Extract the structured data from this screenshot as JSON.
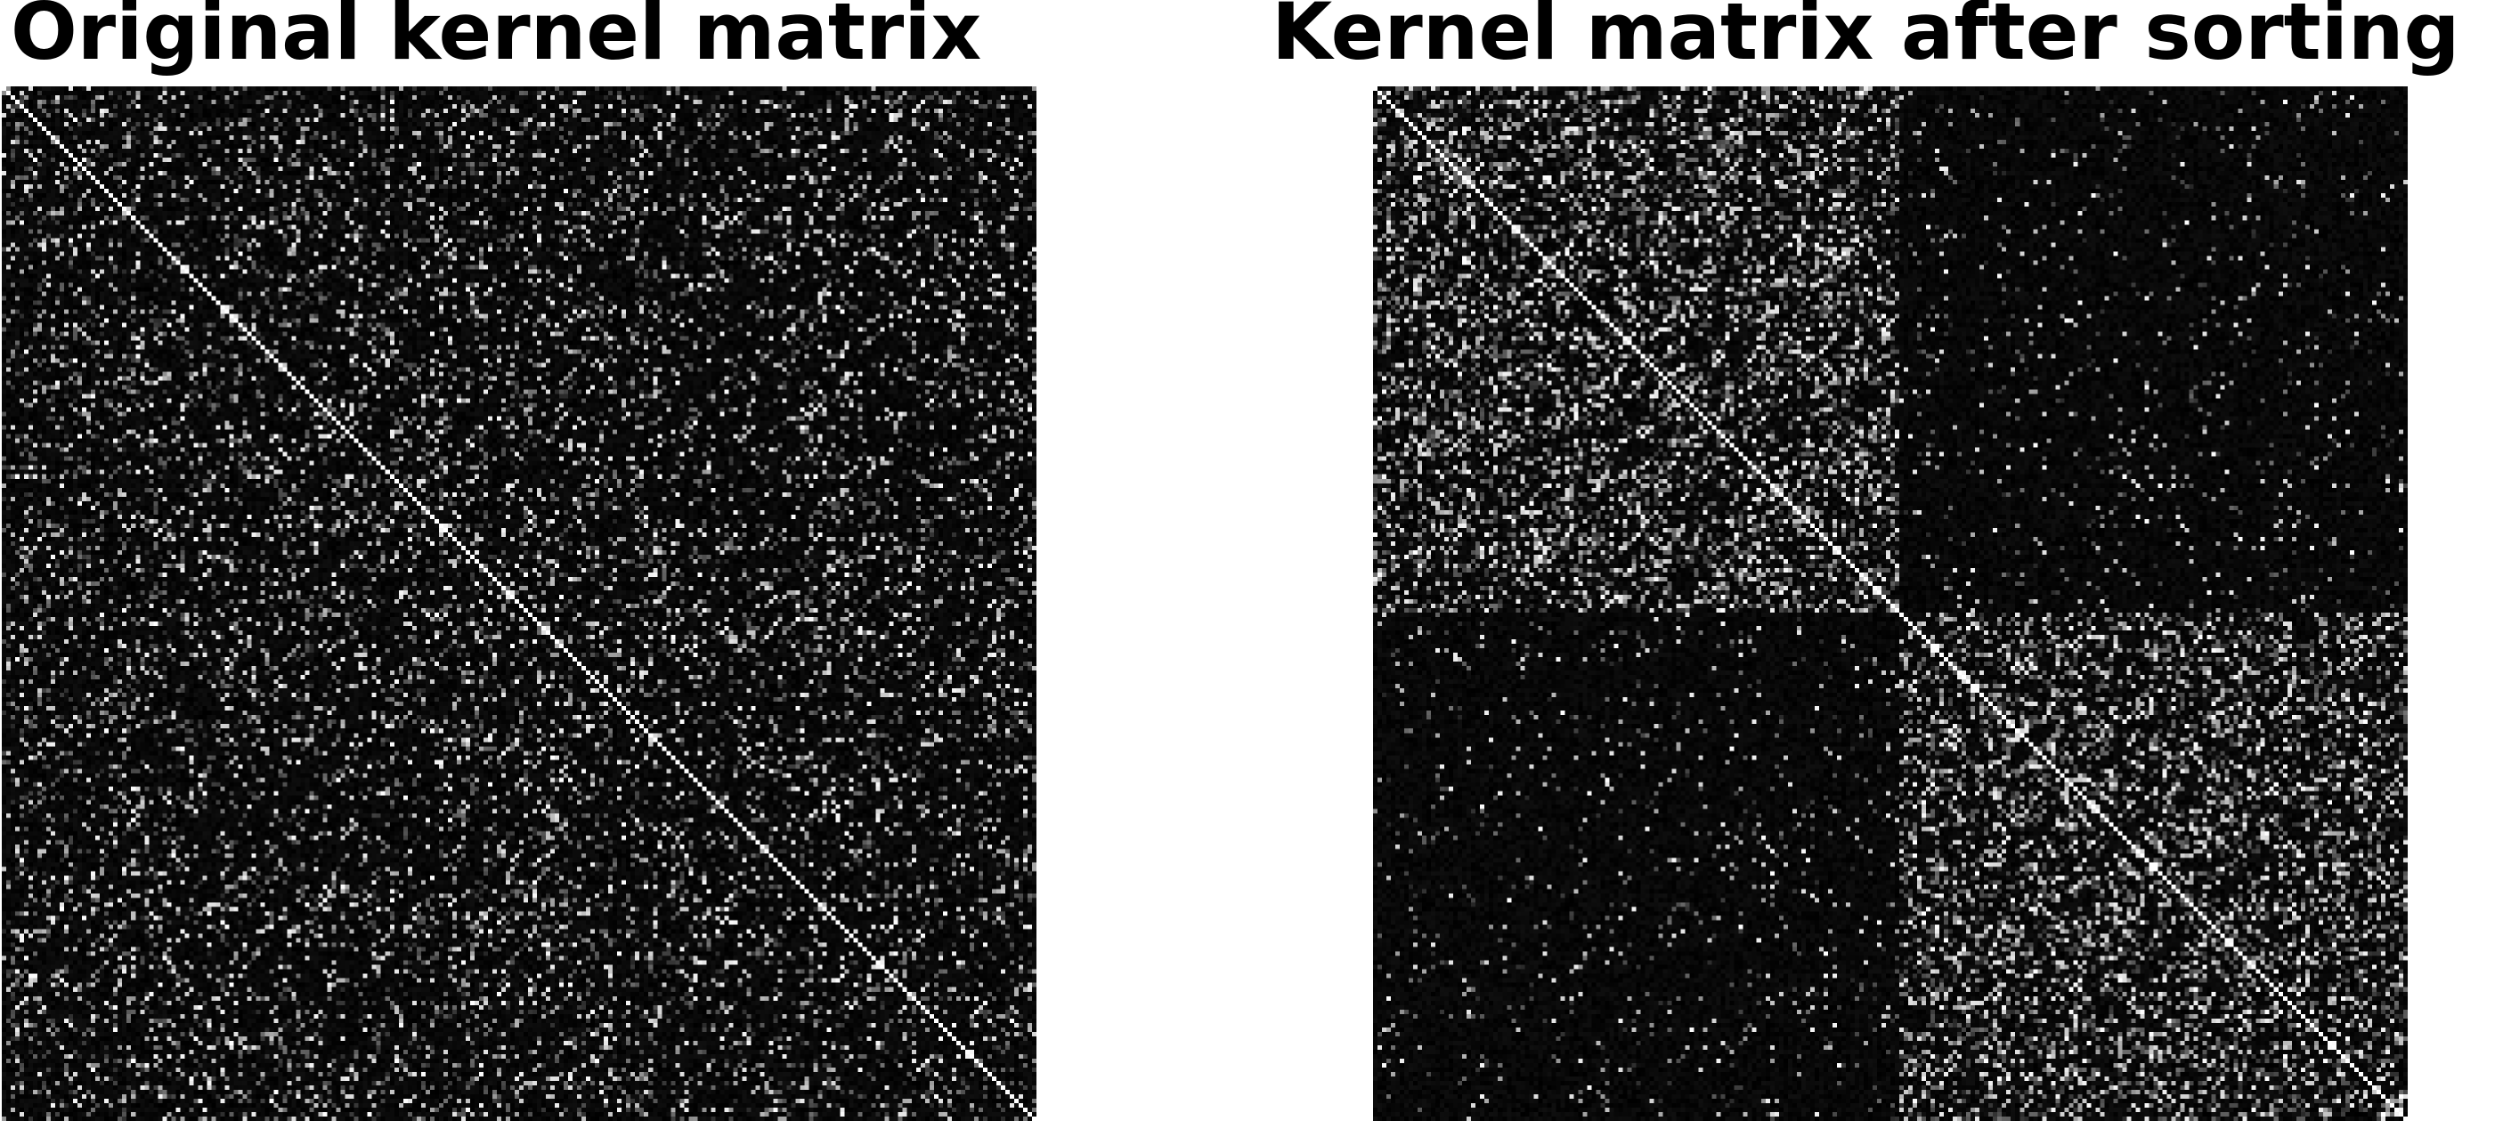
{
  "figure": {
    "background": "#ffffff",
    "colormap": "gray"
  },
  "chart_data": [
    {
      "type": "heatmap",
      "title": "Original kernel matrix",
      "n": 232,
      "colormap": "gray",
      "axes_visible": false,
      "grid": false,
      "structure": "random",
      "diagonal": 1.0,
      "block_sizes": [],
      "within_block_density": 0.09,
      "between_block_density": 0.09,
      "value_range": [
        0,
        1
      ]
    },
    {
      "type": "heatmap",
      "title": "Kernel matrix after sorting",
      "n": 232,
      "colormap": "gray",
      "axes_visible": false,
      "grid": false,
      "structure": "two-block",
      "diagonal": 1.0,
      "block_sizes": [
        118,
        114
      ],
      "within_block_density": 0.16,
      "between_block_density": 0.025,
      "value_range": [
        0,
        1
      ]
    }
  ]
}
